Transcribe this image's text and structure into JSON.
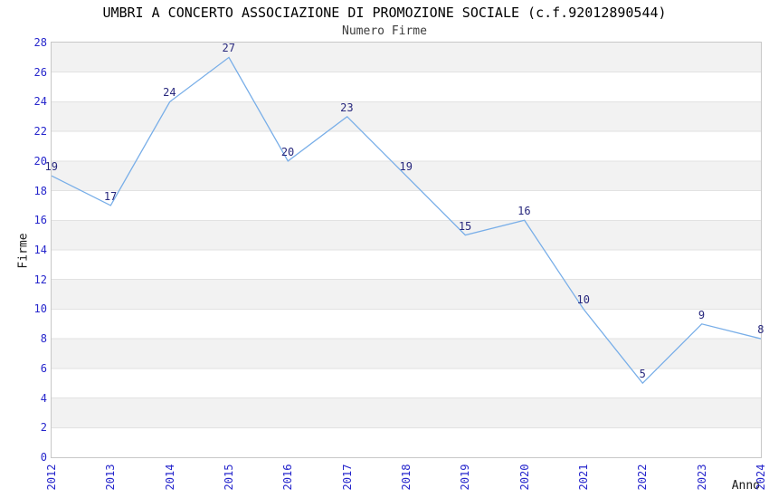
{
  "chart": {
    "title": "UMBRI A CONCERTO ASSOCIAZIONE DI PROMOZIONE SOCIALE (c.f.92012890544)",
    "subtitle": "Numero Firme"
  },
  "chart_data": {
    "type": "line",
    "title": "UMBRI A CONCERTO ASSOCIAZIONE DI PROMOZIONE SOCIALE (c.f.92012890544)",
    "subtitle": "Numero Firme",
    "xlabel": "Anno",
    "ylabel": "Firme",
    "categories": [
      "2012",
      "2013",
      "2014",
      "2015",
      "2016",
      "2017",
      "2018",
      "2019",
      "2020",
      "2021",
      "2022",
      "2023",
      "2024"
    ],
    "values": [
      19,
      17,
      24,
      27,
      20,
      23,
      19,
      15,
      16,
      10,
      5,
      9,
      8
    ],
    "ylim": [
      0,
      28
    ],
    "ytick_step": 2,
    "legend": "none",
    "grid": "alternating horizontal bands",
    "colors": {
      "line": "#78aee8",
      "axis_tick_text": "#2626cc",
      "data_label_text": "#28287d",
      "band_fill": "#f2f2f2",
      "gridline": "#e2e2e2",
      "plot_border": "#c8c8c8",
      "title_text": "#000000",
      "subtitle_text": "#3c3c3c",
      "axis_title_text": "#1a1a1a"
    }
  }
}
